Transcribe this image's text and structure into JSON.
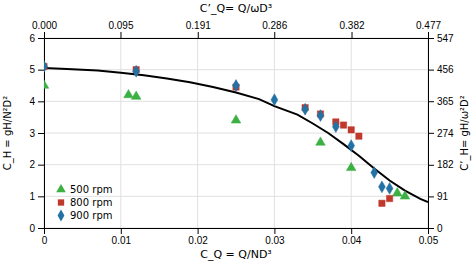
{
  "chart_data": {
    "type": "scatter",
    "xlabel": "C_Q = Q/ND³",
    "ylabel": "C_H = gH/N²D²",
    "x2label": "C’_Q= Q/ωD³",
    "y2label": "C’_H= gH/ω²D²",
    "xlim": [
      0,
      0.05
    ],
    "xticks": [
      0,
      0.01,
      0.02,
      0.03,
      0.04,
      0.05
    ],
    "ylim": [
      0,
      6
    ],
    "yticks": [
      0,
      1,
      2,
      3,
      4,
      5,
      6
    ],
    "x2lim": [
      0,
      0.477
    ],
    "x2ticks": [
      {
        "value": 0,
        "label": "0.000"
      },
      0.095,
      0.191,
      0.286,
      0.382,
      0.477
    ],
    "y2lim": [
      0,
      547
    ],
    "y2ticks": [
      0,
      91,
      182,
      274,
      365,
      456,
      547
    ],
    "grid": true,
    "legend": "lower left",
    "series": [
      {
        "type": "line",
        "color": "#000000",
        "x": [
          0.0,
          0.003,
          0.007,
          0.01,
          0.013,
          0.016,
          0.019,
          0.022,
          0.025,
          0.028,
          0.03,
          0.033,
          0.035,
          0.037,
          0.039,
          0.041,
          0.043,
          0.045,
          0.047,
          0.049,
          0.05
        ],
        "values": [
          5.05,
          5.02,
          4.97,
          4.9,
          4.82,
          4.72,
          4.6,
          4.45,
          4.28,
          4.07,
          3.85,
          3.58,
          3.3,
          3.0,
          2.65,
          2.28,
          1.88,
          1.5,
          1.18,
          0.92,
          0.82
        ]
      },
      {
        "type": "scatter",
        "name": "500 rpm",
        "color": "#3CB043",
        "marker": "triangle",
        "x": [
          0.0,
          0.011,
          0.012,
          0.025,
          0.036,
          0.04,
          0.046,
          0.047
        ],
        "values": [
          4.5,
          4.2,
          4.15,
          3.4,
          2.7,
          1.9,
          1.1,
          1.0
        ]
      },
      {
        "type": "scatter",
        "name": "800 rpm",
        "color": "#C0392B",
        "marker": "square",
        "x": [
          0.0,
          0.012,
          0.025,
          0.034,
          0.036,
          0.038,
          0.039,
          0.04,
          0.041,
          0.044,
          0.045
        ],
        "values": [
          5.1,
          5.0,
          4.45,
          3.8,
          3.6,
          3.35,
          3.25,
          3.1,
          2.9,
          0.78,
          0.93
        ]
      },
      {
        "type": "scatter",
        "name": "900 rpm",
        "color": "#2471A3",
        "marker": "diamond",
        "x": [
          0.0,
          0.012,
          0.025,
          0.03,
          0.034,
          0.036,
          0.038,
          0.04,
          0.043,
          0.044,
          0.045
        ],
        "values": [
          5.1,
          4.95,
          4.5,
          4.05,
          3.75,
          3.55,
          3.2,
          2.6,
          1.75,
          1.3,
          1.25
        ]
      }
    ]
  }
}
